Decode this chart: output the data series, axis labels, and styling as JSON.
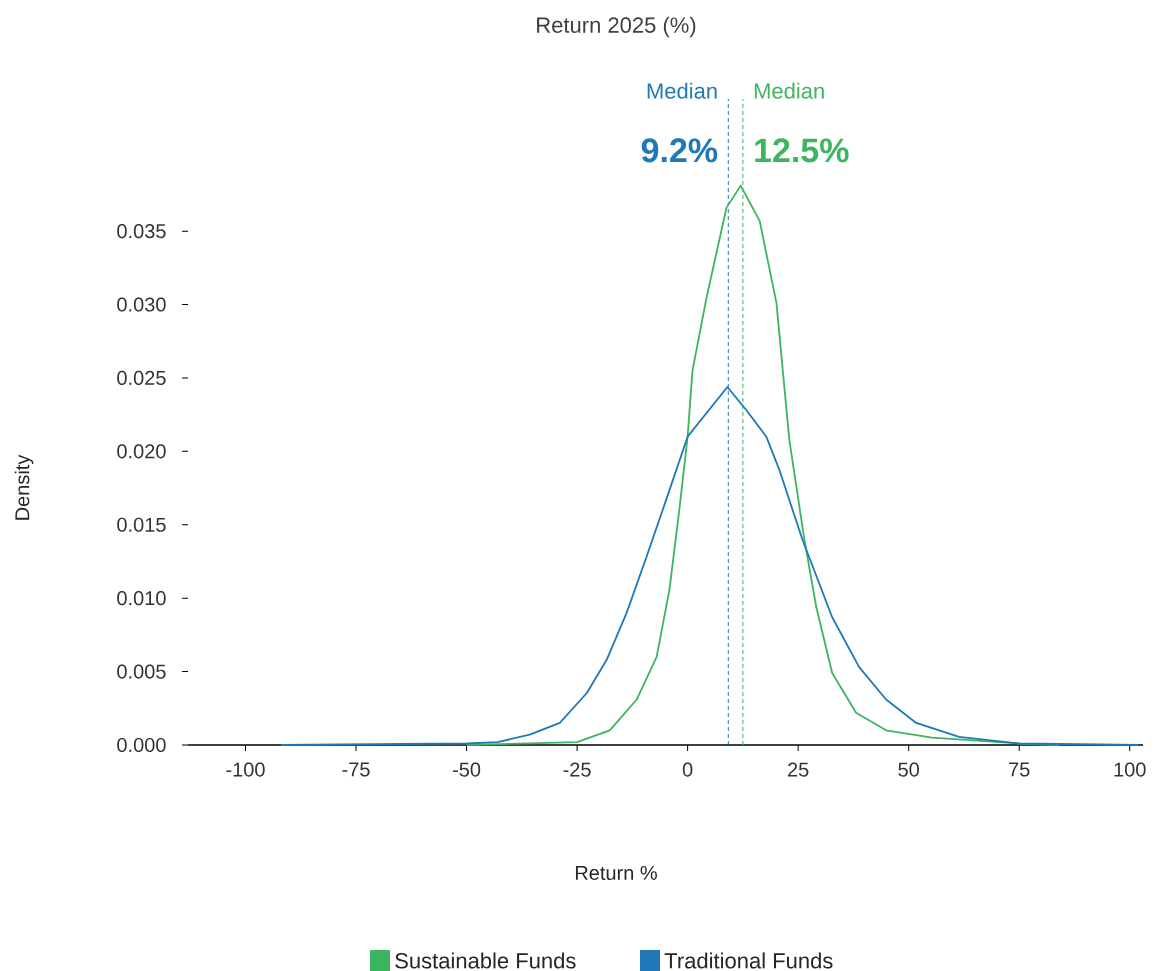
{
  "chart_data": {
    "type": "line",
    "title": "Return 2025 (%)",
    "xlabel": "Return %",
    "ylabel": "Density",
    "xlim": [
      -113,
      103
    ],
    "ylim": [
      0,
      0.044
    ],
    "xticks": [
      -100,
      -75,
      -50,
      -25,
      0,
      25,
      50,
      75,
      100
    ],
    "yticks": [
      {
        "value": 0,
        "label": "0.000"
      },
      {
        "value": 0.005,
        "label": "0.005"
      },
      {
        "value": 0.01,
        "label": "0.010"
      },
      {
        "value": 0.015,
        "label": "0.015"
      },
      {
        "value": 0.02,
        "label": "0.020"
      },
      {
        "value": 0.025,
        "label": "0.025"
      },
      {
        "value": 0.03,
        "label": "0.030"
      },
      {
        "value": 0.035,
        "label": "0.035"
      }
    ],
    "grid": false,
    "legend": "bottom",
    "marker": "none",
    "line_style": "solid",
    "series": [
      {
        "name": "Sustainable Funds",
        "color": "#3cb55e",
        "x": [
          -50,
          -25,
          -17.6,
          -11.5,
          -7,
          -4.1,
          -1.8,
          0,
          1.1,
          4.3,
          8.8,
          12,
          16.3,
          20.1,
          23,
          26.4,
          29.1,
          32.7,
          38.1,
          44.9,
          55.3,
          75,
          84
        ],
        "values": [
          0,
          0.0002,
          0.001,
          0.0031,
          0.006,
          0.0106,
          0.0162,
          0.021,
          0.0255,
          0.0305,
          0.0366,
          0.0381,
          0.0357,
          0.0301,
          0.0208,
          0.014,
          0.0094,
          0.0049,
          0.0022,
          0.001,
          0.0005,
          0.0001,
          0
        ]
      },
      {
        "name": "Traditional Funds",
        "color": "#1f78b8",
        "x": [
          -92,
          -50,
          -43,
          -35.7,
          -28.9,
          -22.8,
          -18.3,
          -13.8,
          -9.3,
          -4.1,
          0,
          9,
          13.3,
          17.8,
          20.8,
          26,
          32.7,
          38.8,
          44.9,
          51.7,
          61.4,
          75,
          102
        ],
        "values": [
          0,
          0.0001,
          0.0002,
          0.0007,
          0.0015,
          0.00354,
          0.0058,
          0.009,
          0.0128,
          0.01736,
          0.021,
          0.02438,
          0.0228,
          0.021,
          0.0187,
          0.01396,
          0.0087,
          0.0053,
          0.0031,
          0.0015,
          0.00055,
          0.0001,
          0
        ]
      }
    ],
    "ref_lines": [
      {
        "axis": "x",
        "value": 9.2,
        "label": "Median",
        "color": "#1f78b8",
        "line_style": "dashed"
      },
      {
        "axis": "x",
        "value": 12.5,
        "label": "Median",
        "color": "#3cb55e",
        "line_style": "dashed"
      }
    ],
    "annotations": [
      {
        "text": "9.2%",
        "x": 9.2,
        "y": 0.0405
      },
      {
        "text": "12.5%",
        "x": 12.5,
        "y": 0.0405
      }
    ]
  }
}
